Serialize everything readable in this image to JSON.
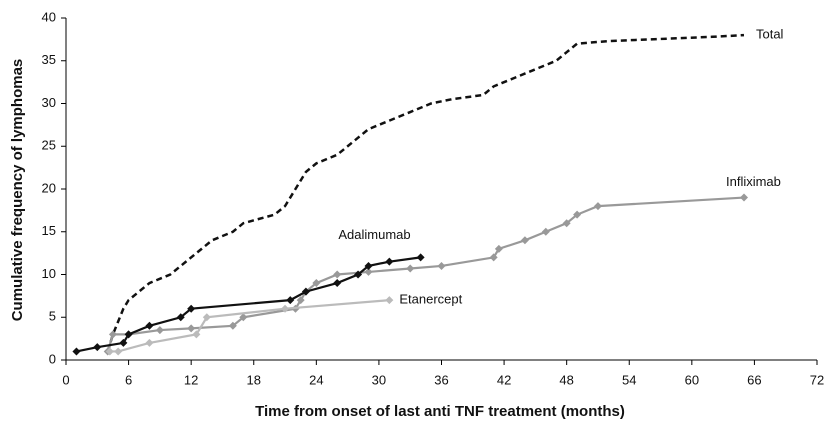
{
  "chart_data": {
    "type": "line",
    "x_label": "Time from onset of last anti TNF treatment (months)",
    "y_label": "Cumulative frequency of lymphomas",
    "xlim": [
      0,
      72
    ],
    "xticks": [
      0,
      6,
      12,
      18,
      24,
      30,
      36,
      42,
      48,
      54,
      60,
      66,
      72
    ],
    "ylim": [
      0,
      40
    ],
    "yticks": [
      0,
      5,
      10,
      15,
      20,
      25,
      30,
      35,
      40
    ],
    "grid": false,
    "series": [
      {
        "name": "Total",
        "color": "#111111",
        "dashed": true,
        "markers": false,
        "x": [
          4,
          4.5,
          5.5,
          6,
          7,
          8,
          10,
          11,
          13,
          14,
          16,
          17,
          20,
          21,
          22,
          23,
          24,
          26,
          27,
          28,
          29,
          31,
          33,
          35,
          37,
          40,
          41,
          43,
          45,
          46,
          47,
          48,
          49,
          52,
          58,
          62,
          65
        ],
        "values": [
          1,
          3,
          6,
          7,
          8,
          9,
          10,
          11,
          13,
          14,
          15,
          16,
          17,
          18,
          20,
          22,
          23,
          24,
          25,
          26,
          27,
          28,
          29,
          30,
          30.5,
          31,
          32,
          33,
          34,
          34.5,
          35,
          36,
          37,
          37.3,
          37.6,
          37.8,
          38
        ]
      },
      {
        "name": "Infliximab",
        "color": "#999999",
        "dashed": false,
        "markers": true,
        "x": [
          4,
          4.5,
          6,
          9,
          12,
          16,
          17,
          22,
          22.5,
          23,
          24,
          26,
          29,
          33,
          36,
          41,
          41.5,
          44,
          46,
          48,
          49,
          51,
          65
        ],
        "values": [
          1,
          3,
          3,
          3.5,
          3.7,
          4,
          5,
          6,
          7,
          8,
          9,
          10,
          10.3,
          10.7,
          11,
          12,
          13,
          14,
          15,
          16,
          17,
          18,
          19
        ]
      },
      {
        "name": "Adalimumab",
        "color": "#111111",
        "dashed": false,
        "markers": true,
        "x": [
          1,
          3,
          5.5,
          6,
          8,
          11,
          12,
          21.5,
          23,
          26,
          28,
          29,
          31,
          34
        ],
        "values": [
          1,
          1.5,
          2,
          3,
          4,
          5,
          6,
          7,
          8,
          9,
          10,
          11,
          11.5,
          12
        ]
      },
      {
        "name": "Etanercept",
        "color": "#bbbbbb",
        "dashed": false,
        "markers": true,
        "x": [
          4.2,
          5,
          8,
          12.5,
          13.5,
          21,
          31
        ],
        "values": [
          1,
          1,
          2,
          3,
          5,
          6,
          7
        ]
      }
    ]
  }
}
